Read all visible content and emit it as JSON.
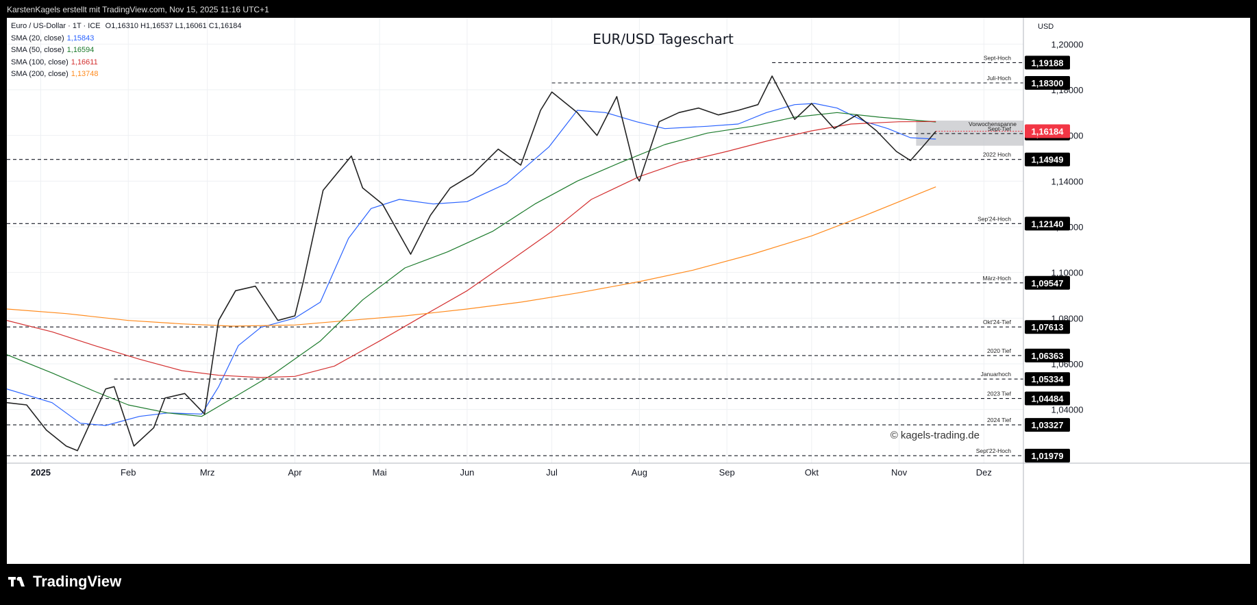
{
  "header": {
    "credit": "KarstenKagels erstellt mit TradingView.com, Nov 15, 2025 11:16 UTC+1"
  },
  "legend": {
    "symbol": "Euro / US-Dollar · 1T · ICE",
    "ohlc": "O1,16310  H1,16537  L1,16061  C1,16184",
    "smas": [
      {
        "label": "SMA (20, close)",
        "value": "1,15843",
        "color": "#2962ff"
      },
      {
        "label": "SMA (50, close)",
        "value": "1,16594",
        "color": "#1b7a2b"
      },
      {
        "label": "SMA (100, close)",
        "value": "1,16611",
        "color": "#d32f2f"
      },
      {
        "label": "SMA (200, close)",
        "value": "1,13748",
        "color": "#ff8a1c"
      }
    ]
  },
  "watermark": "© kagels-trading.de",
  "footer": {
    "logo": "TradingView"
  },
  "chart_data": {
    "type": "line",
    "title": "EUR/USD Tageschart",
    "currency_label": "USD",
    "ylim": [
      1.0165,
      1.2115
    ],
    "y_ticks": [
      {
        "value": 1.2,
        "label": "1,20000"
      },
      {
        "value": 1.18,
        "label": "1,18000"
      },
      {
        "value": 1.16,
        "label": "1,16000"
      },
      {
        "value": 1.14,
        "label": "1,14000"
      },
      {
        "value": 1.12,
        "label": "1,12000"
      },
      {
        "value": 1.1,
        "label": "1,10000"
      },
      {
        "value": 1.08,
        "label": "1,08000"
      },
      {
        "value": 1.06,
        "label": "1,06000"
      },
      {
        "value": 1.04,
        "label": "1,04000"
      }
    ],
    "x_ticks": [
      {
        "date": "2025-01-01",
        "label": "2025",
        "bold": true
      },
      {
        "date": "2025-02-01",
        "label": "Feb"
      },
      {
        "date": "2025-03-01",
        "label": "Mrz"
      },
      {
        "date": "2025-04-01",
        "label": "Apr"
      },
      {
        "date": "2025-05-01",
        "label": "Mai"
      },
      {
        "date": "2025-06-01",
        "label": "Jun"
      },
      {
        "date": "2025-07-01",
        "label": "Jul"
      },
      {
        "date": "2025-08-01",
        "label": "Aug"
      },
      {
        "date": "2025-09-01",
        "label": "Sep"
      },
      {
        "date": "2025-10-01",
        "label": "Okt"
      },
      {
        "date": "2025-11-01",
        "label": "Nov"
      },
      {
        "date": "2025-12-01",
        "label": "Dez"
      }
    ],
    "levels": [
      {
        "name": "Sept-Hoch",
        "value": 1.19188,
        "label": "1,19188",
        "start": "2025-09-17"
      },
      {
        "name": "Juli-Hoch",
        "value": 1.183,
        "label": "1,18300",
        "start": "2025-07-01"
      },
      {
        "name": "Sept-Tief",
        "value": 1.16083,
        "label": "1,16083",
        "start": "2025-09-02"
      },
      {
        "name": "2022 Hoch",
        "value": 1.14949,
        "label": "1,14949",
        "start": "2024-12-20"
      },
      {
        "name": "Sep'24-Hoch",
        "value": 1.1214,
        "label": "1,12140",
        "start": "2024-12-20"
      },
      {
        "name": "März-Hoch",
        "value": 1.09547,
        "label": "1,09547",
        "start": "2025-03-18"
      },
      {
        "name": "Okt'24-Tief",
        "value": 1.07613,
        "label": "1,07613",
        "start": "2024-12-20"
      },
      {
        "name": "2020 Tief",
        "value": 1.06363,
        "label": "1,06363",
        "start": "2024-12-20"
      },
      {
        "name": "Januarhoch",
        "value": 1.05334,
        "label": "1,05334",
        "start": "2025-01-27"
      },
      {
        "name": "2023 Tief",
        "value": 1.04484,
        "label": "1,04484",
        "start": "2024-12-20"
      },
      {
        "name": "2024 Tief",
        "value": 1.03327,
        "label": "1,03327",
        "start": "2024-12-20"
      },
      {
        "name": "Sept'22-Hoch",
        "value": 1.01979,
        "label": "1,01979",
        "start": "2024-12-20"
      }
    ],
    "current_price": {
      "value": 1.16184,
      "label": "1,16184",
      "color": "#f23645"
    },
    "zone": {
      "name": "Vorwochenspanne",
      "high": 1.1665,
      "low": 1.1555,
      "start": "2025-11-07"
    },
    "series": [
      {
        "name": "SMA (20, close)",
        "color": "#2962ff",
        "points": [
          [
            "2024-12-20",
            1.049
          ],
          [
            "2025-01-05",
            1.043
          ],
          [
            "2025-01-15",
            1.034
          ],
          [
            "2025-01-24",
            1.033
          ],
          [
            "2025-02-05",
            1.037
          ],
          [
            "2025-02-15",
            1.0385
          ],
          [
            "2025-02-27",
            1.038
          ],
          [
            "2025-03-05",
            1.05
          ],
          [
            "2025-03-12",
            1.068
          ],
          [
            "2025-03-20",
            1.076
          ],
          [
            "2025-04-01",
            1.08
          ],
          [
            "2025-04-10",
            1.087
          ],
          [
            "2025-04-20",
            1.115
          ],
          [
            "2025-04-28",
            1.128
          ],
          [
            "2025-05-08",
            1.132
          ],
          [
            "2025-05-20",
            1.13
          ],
          [
            "2025-06-01",
            1.131
          ],
          [
            "2025-06-15",
            1.139
          ],
          [
            "2025-06-30",
            1.155
          ],
          [
            "2025-07-10",
            1.171
          ],
          [
            "2025-07-20",
            1.17
          ],
          [
            "2025-07-31",
            1.166
          ],
          [
            "2025-08-10",
            1.163
          ],
          [
            "2025-08-25",
            1.164
          ],
          [
            "2025-09-05",
            1.165
          ],
          [
            "2025-09-15",
            1.17
          ],
          [
            "2025-09-25",
            1.1735
          ],
          [
            "2025-10-02",
            1.174
          ],
          [
            "2025-10-10",
            1.172
          ],
          [
            "2025-10-20",
            1.166
          ],
          [
            "2025-10-28",
            1.163
          ],
          [
            "2025-11-05",
            1.159
          ],
          [
            "2025-11-14",
            1.1584
          ]
        ]
      },
      {
        "name": "SMA (50, close)",
        "color": "#1b7a2b",
        "points": [
          [
            "2024-12-20",
            1.064
          ],
          [
            "2025-01-05",
            1.056
          ],
          [
            "2025-01-20",
            1.048
          ],
          [
            "2025-02-01",
            1.042
          ],
          [
            "2025-02-15",
            1.0385
          ],
          [
            "2025-02-27",
            1.037
          ],
          [
            "2025-03-10",
            1.045
          ],
          [
            "2025-03-25",
            1.056
          ],
          [
            "2025-04-10",
            1.07
          ],
          [
            "2025-04-25",
            1.088
          ],
          [
            "2025-05-10",
            1.102
          ],
          [
            "2025-05-25",
            1.109
          ],
          [
            "2025-06-10",
            1.118
          ],
          [
            "2025-06-25",
            1.13
          ],
          [
            "2025-07-10",
            1.14
          ],
          [
            "2025-07-25",
            1.148
          ],
          [
            "2025-08-10",
            1.156
          ],
          [
            "2025-08-25",
            1.161
          ],
          [
            "2025-09-10",
            1.164
          ],
          [
            "2025-09-25",
            1.168
          ],
          [
            "2025-10-10",
            1.17
          ],
          [
            "2025-10-25",
            1.168
          ],
          [
            "2025-11-14",
            1.1659
          ]
        ]
      },
      {
        "name": "SMA (100, close)",
        "color": "#d32f2f",
        "points": [
          [
            "2024-12-20",
            1.079
          ],
          [
            "2025-01-05",
            1.074
          ],
          [
            "2025-01-20",
            1.068
          ],
          [
            "2025-02-05",
            1.062
          ],
          [
            "2025-02-20",
            1.057
          ],
          [
            "2025-03-05",
            1.055
          ],
          [
            "2025-03-20",
            1.054
          ],
          [
            "2025-04-01",
            1.0545
          ],
          [
            "2025-04-15",
            1.059
          ],
          [
            "2025-05-01",
            1.07
          ],
          [
            "2025-05-15",
            1.08
          ],
          [
            "2025-06-01",
            1.092
          ],
          [
            "2025-06-15",
            1.104
          ],
          [
            "2025-07-01",
            1.118
          ],
          [
            "2025-07-15",
            1.132
          ],
          [
            "2025-08-01",
            1.142
          ],
          [
            "2025-08-15",
            1.148
          ],
          [
            "2025-09-01",
            1.153
          ],
          [
            "2025-09-15",
            1.1575
          ],
          [
            "2025-10-01",
            1.162
          ],
          [
            "2025-10-15",
            1.165
          ],
          [
            "2025-11-01",
            1.166
          ],
          [
            "2025-11-14",
            1.1661
          ]
        ]
      },
      {
        "name": "SMA (200, close)",
        "color": "#ff8a1c",
        "points": [
          [
            "2024-12-20",
            1.084
          ],
          [
            "2025-01-10",
            1.082
          ],
          [
            "2025-02-01",
            1.079
          ],
          [
            "2025-02-20",
            1.0775
          ],
          [
            "2025-03-10",
            1.0765
          ],
          [
            "2025-04-01",
            1.077
          ],
          [
            "2025-04-20",
            1.079
          ],
          [
            "2025-05-10",
            1.081
          ],
          [
            "2025-06-01",
            1.084
          ],
          [
            "2025-06-20",
            1.087
          ],
          [
            "2025-07-10",
            1.091
          ],
          [
            "2025-08-01",
            1.096
          ],
          [
            "2025-08-20",
            1.101
          ],
          [
            "2025-09-10",
            1.108
          ],
          [
            "2025-10-01",
            1.116
          ],
          [
            "2025-10-20",
            1.125
          ],
          [
            "2025-11-05",
            1.133
          ],
          [
            "2025-11-14",
            1.1375
          ]
        ]
      },
      {
        "name": "EUR/USD",
        "color": "#222222",
        "points": [
          [
            "2024-12-20",
            1.043
          ],
          [
            "2024-12-27",
            1.042
          ],
          [
            "2025-01-03",
            1.031
          ],
          [
            "2025-01-10",
            1.024
          ],
          [
            "2025-01-14",
            1.022
          ],
          [
            "2025-01-17",
            1.03
          ],
          [
            "2025-01-24",
            1.049
          ],
          [
            "2025-01-27",
            1.05
          ],
          [
            "2025-02-03",
            1.024
          ],
          [
            "2025-02-10",
            1.032
          ],
          [
            "2025-02-14",
            1.045
          ],
          [
            "2025-02-21",
            1.047
          ],
          [
            "2025-02-28",
            1.038
          ],
          [
            "2025-03-05",
            1.079
          ],
          [
            "2025-03-11",
            1.092
          ],
          [
            "2025-03-18",
            1.094
          ],
          [
            "2025-03-26",
            1.079
          ],
          [
            "2025-04-01",
            1.081
          ],
          [
            "2025-04-04",
            1.096
          ],
          [
            "2025-04-11",
            1.136
          ],
          [
            "2025-04-21",
            1.151
          ],
          [
            "2025-04-25",
            1.137
          ],
          [
            "2025-05-02",
            1.13
          ],
          [
            "2025-05-12",
            1.108
          ],
          [
            "2025-05-19",
            1.125
          ],
          [
            "2025-05-26",
            1.137
          ],
          [
            "2025-06-03",
            1.143
          ],
          [
            "2025-06-12",
            1.154
          ],
          [
            "2025-06-20",
            1.147
          ],
          [
            "2025-06-27",
            1.171
          ],
          [
            "2025-07-01",
            1.179
          ],
          [
            "2025-07-10",
            1.17
          ],
          [
            "2025-07-17",
            1.16
          ],
          [
            "2025-07-24",
            1.177
          ],
          [
            "2025-07-31",
            1.142
          ],
          [
            "2025-08-01",
            1.14
          ],
          [
            "2025-08-08",
            1.166
          ],
          [
            "2025-08-15",
            1.17
          ],
          [
            "2025-08-22",
            1.172
          ],
          [
            "2025-08-29",
            1.169
          ],
          [
            "2025-09-05",
            1.171
          ],
          [
            "2025-09-12",
            1.1735
          ],
          [
            "2025-09-17",
            1.186
          ],
          [
            "2025-09-25",
            1.167
          ],
          [
            "2025-10-01",
            1.174
          ],
          [
            "2025-10-09",
            1.163
          ],
          [
            "2025-10-17",
            1.169
          ],
          [
            "2025-10-24",
            1.162
          ],
          [
            "2025-10-31",
            1.153
          ],
          [
            "2025-11-05",
            1.149
          ],
          [
            "2025-11-10",
            1.156
          ],
          [
            "2025-11-14",
            1.1618
          ]
        ]
      }
    ]
  }
}
